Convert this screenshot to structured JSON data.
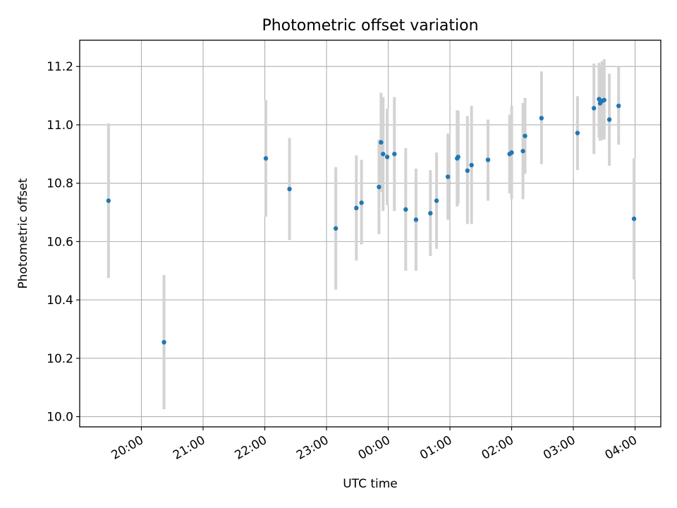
{
  "chart_data": {
    "type": "scatter",
    "title": "Photometric offset variation",
    "xlabel": "UTC time",
    "ylabel": "Photometric offset",
    "x_axis": {
      "kind": "time",
      "range": [
        "19:00",
        "04:25"
      ],
      "ticks": [
        "20:00",
        "21:00",
        "22:00",
        "23:00",
        "00:00",
        "01:00",
        "02:00",
        "03:00",
        "04:00"
      ]
    },
    "y_axis": {
      "range": [
        9.965,
        11.29
      ],
      "ticks": [
        "10.0",
        "10.2",
        "10.4",
        "10.6",
        "10.8",
        "11.0",
        "11.2"
      ]
    },
    "grid": true,
    "colors": {
      "marker": "#1f77b4",
      "errorbar": "#d3d3d3",
      "grid": "#b0b0b0"
    },
    "points": [
      {
        "x": "19:28",
        "y": 10.74,
        "yerr_low": 10.475,
        "yerr_high": 11.005
      },
      {
        "x": "20:22",
        "y": 10.255,
        "yerr_low": 10.025,
        "yerr_high": 10.485
      },
      {
        "x": "22:01",
        "y": 10.885,
        "yerr_low": 10.685,
        "yerr_high": 11.085
      },
      {
        "x": "22:24",
        "y": 10.78,
        "yerr_low": 10.605,
        "yerr_high": 10.955
      },
      {
        "x": "23:09",
        "y": 10.645,
        "yerr_low": 10.435,
        "yerr_high": 10.855
      },
      {
        "x": "23:29",
        "y": 10.715,
        "yerr_low": 10.535,
        "yerr_high": 10.895
      },
      {
        "x": "23:34",
        "y": 10.733,
        "yerr_low": 10.59,
        "yerr_high": 10.88
      },
      {
        "x": "23:51",
        "y": 10.787,
        "yerr_low": 10.625,
        "yerr_high": 10.95
      },
      {
        "x": "23:53",
        "y": 10.94,
        "yerr_low": 10.77,
        "yerr_high": 11.11
      },
      {
        "x": "23:55",
        "y": 10.9,
        "yerr_low": 10.705,
        "yerr_high": 11.095
      },
      {
        "x": "23:59",
        "y": 10.89,
        "yerr_low": 10.725,
        "yerr_high": 11.055
      },
      {
        "x": "00:06",
        "y": 10.9,
        "yerr_low": 10.705,
        "yerr_high": 11.095
      },
      {
        "x": "00:17",
        "y": 10.71,
        "yerr_low": 10.5,
        "yerr_high": 10.92
      },
      {
        "x": "00:27",
        "y": 10.675,
        "yerr_low": 10.5,
        "yerr_high": 10.85
      },
      {
        "x": "00:41",
        "y": 10.697,
        "yerr_low": 10.55,
        "yerr_high": 10.845
      },
      {
        "x": "00:47",
        "y": 10.74,
        "yerr_low": 10.575,
        "yerr_high": 10.905
      },
      {
        "x": "00:58",
        "y": 10.822,
        "yerr_low": 10.675,
        "yerr_high": 10.97
      },
      {
        "x": "01:07",
        "y": 10.885,
        "yerr_low": 10.72,
        "yerr_high": 11.05
      },
      {
        "x": "01:08",
        "y": 10.89,
        "yerr_low": 10.73,
        "yerr_high": 11.048
      },
      {
        "x": "01:17",
        "y": 10.843,
        "yerr_low": 10.66,
        "yerr_high": 11.03
      },
      {
        "x": "01:21",
        "y": 10.862,
        "yerr_low": 10.66,
        "yerr_high": 11.065
      },
      {
        "x": "01:37",
        "y": 10.88,
        "yerr_low": 10.74,
        "yerr_high": 11.018
      },
      {
        "x": "01:58",
        "y": 10.9,
        "yerr_low": 10.765,
        "yerr_high": 11.035
      },
      {
        "x": "02:00",
        "y": 10.905,
        "yerr_low": 10.745,
        "yerr_high": 11.065
      },
      {
        "x": "02:11",
        "y": 10.91,
        "yerr_low": 10.745,
        "yerr_high": 11.075
      },
      {
        "x": "02:13",
        "y": 10.962,
        "yerr_low": 10.832,
        "yerr_high": 11.092
      },
      {
        "x": "02:29",
        "y": 11.023,
        "yerr_low": 10.865,
        "yerr_high": 11.183
      },
      {
        "x": "03:04",
        "y": 10.972,
        "yerr_low": 10.845,
        "yerr_high": 11.098
      },
      {
        "x": "03:20",
        "y": 11.057,
        "yerr_low": 10.9,
        "yerr_high": 11.21
      },
      {
        "x": "03:25",
        "y": 11.088,
        "yerr_low": 10.955,
        "yerr_high": 11.213
      },
      {
        "x": "03:26",
        "y": 11.074,
        "yerr_low": 10.945,
        "yerr_high": 11.198
      },
      {
        "x": "03:28",
        "y": 11.082,
        "yerr_low": 10.948,
        "yerr_high": 11.218
      },
      {
        "x": "03:30",
        "y": 11.085,
        "yerr_low": 10.95,
        "yerr_high": 11.225
      },
      {
        "x": "03:35",
        "y": 11.018,
        "yerr_low": 10.86,
        "yerr_high": 11.175
      },
      {
        "x": "03:44",
        "y": 11.065,
        "yerr_low": 10.932,
        "yerr_high": 11.2
      },
      {
        "x": "03:59",
        "y": 10.678,
        "yerr_low": 10.47,
        "yerr_high": 10.885
      }
    ]
  }
}
